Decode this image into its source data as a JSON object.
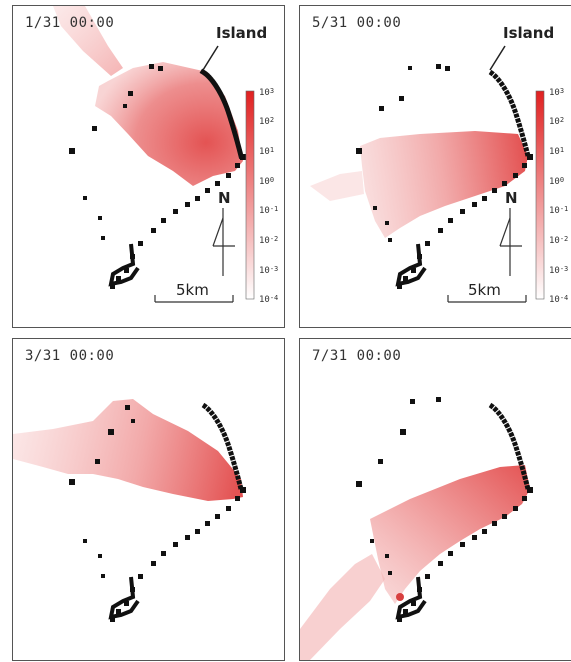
{
  "panels": [
    {
      "id": "jan",
      "title": "1/31 00:00",
      "show_legend": true
    },
    {
      "id": "may",
      "title": "5/31 00:00",
      "show_legend": true
    },
    {
      "id": "mar",
      "title": "3/31 00:00",
      "show_legend": false
    },
    {
      "id": "jul",
      "title": "7/31 00:00",
      "show_legend": false
    }
  ],
  "labels": {
    "island": "Island",
    "north": "N",
    "scale": "5km"
  },
  "colorbar": {
    "ticks": [
      {
        "base": "10",
        "exp": "3"
      },
      {
        "base": "10",
        "exp": "2"
      },
      {
        "base": "10",
        "exp": "1"
      },
      {
        "base": "10",
        "exp": "0"
      },
      {
        "base": "10",
        "exp": "-1"
      },
      {
        "base": "10",
        "exp": "-2"
      },
      {
        "base": "10",
        "exp": "-3"
      },
      {
        "base": "10",
        "exp": "-4"
      }
    ],
    "color_high": "#e02020",
    "color_low": "#ffffff"
  },
  "colors": {
    "coast": "#111111",
    "plume": "#e86a6a"
  }
}
